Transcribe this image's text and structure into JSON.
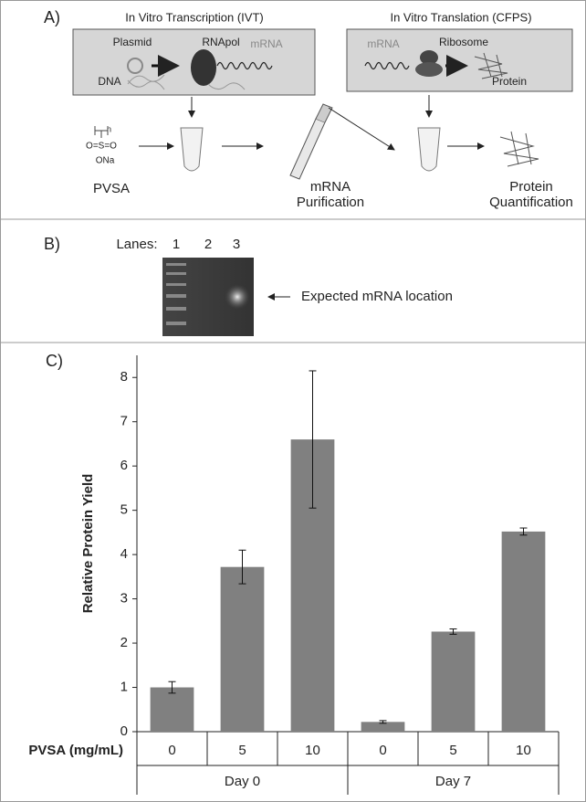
{
  "panel_a": {
    "label": "A)",
    "ivt": {
      "title": "In Vitro Transcription (IVT)",
      "plasmid": "Plasmid",
      "rnapol": "RNApol",
      "mrna": "mRNA",
      "dna": "DNA"
    },
    "cfps": {
      "title": "In Vitro Translation (CFPS)",
      "mrna": "mRNA",
      "ribosome": "Ribosome",
      "protein": "Protein"
    },
    "structure": {
      "n": "n",
      "sulfonyl": "O=S=O",
      "ona": "ONa"
    },
    "steps": {
      "pvsa": "PVSA",
      "purification": [
        "mRNA",
        "Purification"
      ],
      "quantification": [
        "Protein",
        "Quantification"
      ]
    }
  },
  "panel_b": {
    "label": "B)",
    "lanes_label": "Lanes:",
    "lanes": [
      "1",
      "2",
      "3"
    ],
    "annotation": "Expected mRNA location"
  },
  "chart_data": {
    "type": "bar",
    "panel_label": "C)",
    "y_label": "Relative Protein Yield",
    "x_label": "PVSA (mg/mL)",
    "categories": [
      "0",
      "5",
      "10",
      "0",
      "5",
      "10"
    ],
    "groups": [
      "Day 0",
      "Day 7"
    ],
    "values": [
      1.0,
      3.72,
      6.6,
      0.22,
      2.26,
      4.52
    ],
    "errors": [
      0.13,
      0.38,
      1.55,
      0.03,
      0.06,
      0.08
    ],
    "color": "#808080",
    "ylim": [
      0,
      8.5
    ],
    "yticks": [
      0,
      1,
      2,
      3,
      4,
      5,
      6,
      7,
      8
    ]
  }
}
